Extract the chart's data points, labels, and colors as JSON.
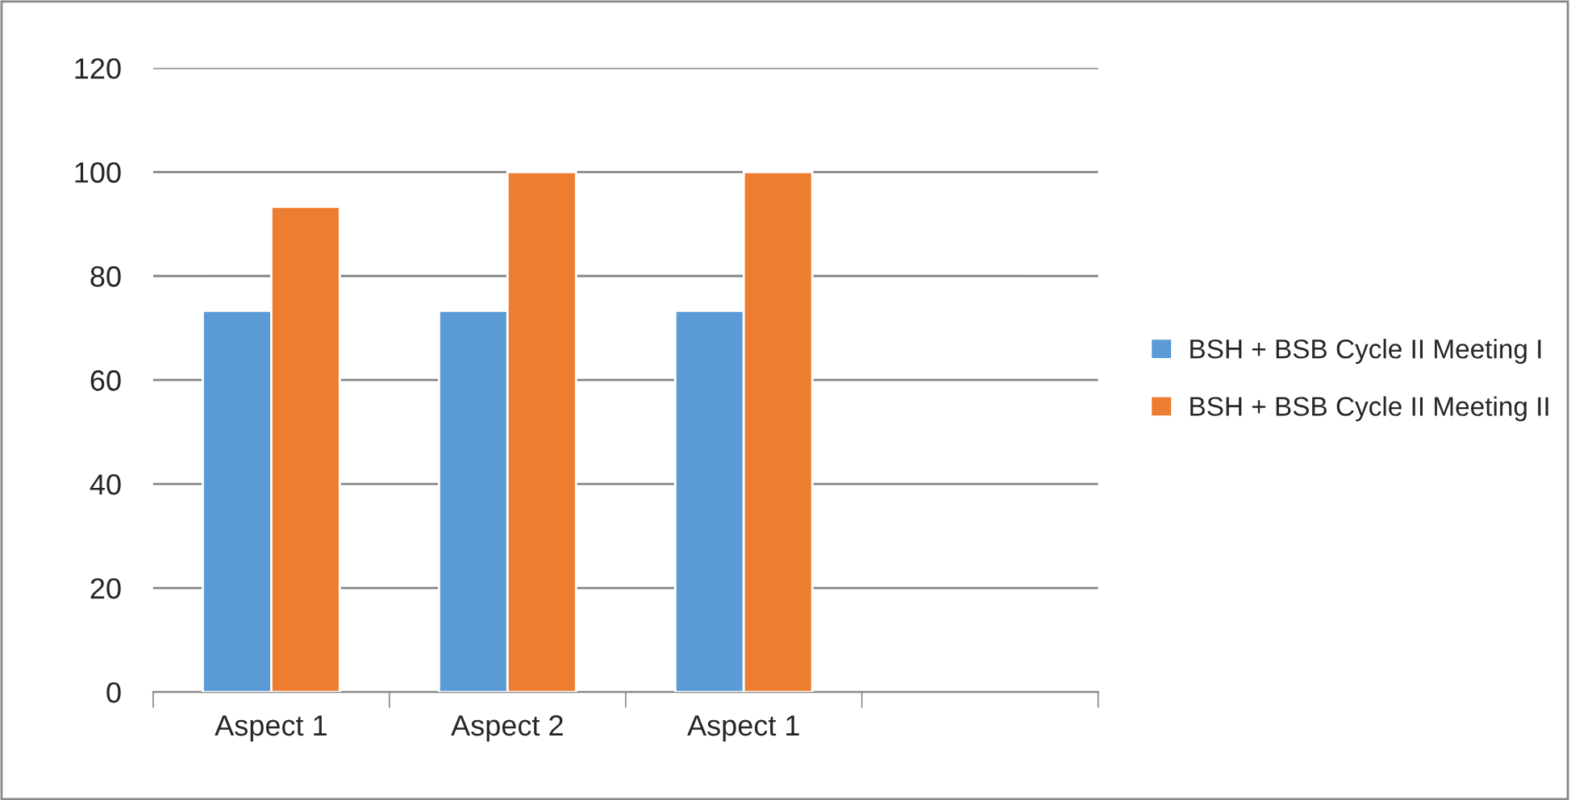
{
  "chart_data": {
    "type": "bar",
    "categories": [
      "Aspect 1",
      "Aspect 2",
      "Aspect 1",
      null
    ],
    "series": [
      {
        "name": "BSH + BSB Cycle II Meeting I",
        "color": "#5b9bd5",
        "values": [
          73.3,
          73.3,
          73.3,
          null
        ]
      },
      {
        "name": "BSH + BSB Cycle II Meeting II",
        "color": "#ed7d31",
        "values": [
          93.3,
          100,
          100,
          null
        ]
      }
    ],
    "ylim": [
      0,
      120
    ],
    "yticks": [
      0,
      20,
      40,
      60,
      80,
      100,
      120
    ],
    "grid": "y",
    "legend": "right"
  }
}
